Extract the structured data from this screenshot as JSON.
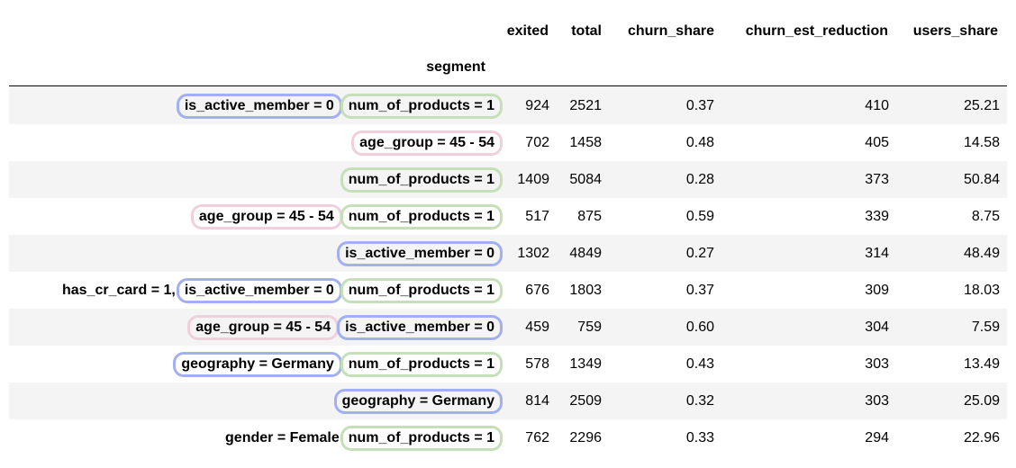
{
  "table": {
    "index_name": "segment",
    "columns": [
      "exited",
      "total",
      "churn_share",
      "churn_est_reduction",
      "users_share"
    ],
    "rows": [
      {
        "segment": [
          {
            "text": "is_active_member = 0",
            "color": "#a2aff0"
          },
          {
            "text": "num_of_products = 1",
            "color": "#c5e0b8"
          }
        ],
        "exited": "924",
        "total": "2521",
        "churn_share": "0.37",
        "churn_est_reduction": "410",
        "users_share": "25.21"
      },
      {
        "segment": [
          {
            "text": "age_group = 45 - 54",
            "color": "#f0d0dc"
          }
        ],
        "exited": "702",
        "total": "1458",
        "churn_share": "0.48",
        "churn_est_reduction": "405",
        "users_share": "14.58"
      },
      {
        "segment": [
          {
            "text": "num_of_products = 1",
            "color": "#c5e0b8"
          }
        ],
        "exited": "1409",
        "total": "5084",
        "churn_share": "0.28",
        "churn_est_reduction": "373",
        "users_share": "50.84"
      },
      {
        "segment": [
          {
            "text": "age_group = 45 - 54",
            "color": "#f0d0dc"
          },
          {
            "text": "num_of_products = 1",
            "color": "#c5e0b8"
          }
        ],
        "exited": "517",
        "total": "875",
        "churn_share": "0.59",
        "churn_est_reduction": "339",
        "users_share": "8.75"
      },
      {
        "segment": [
          {
            "text": "is_active_member = 0",
            "color": "#a2aff0"
          }
        ],
        "exited": "1302",
        "total": "4849",
        "churn_share": "0.27",
        "churn_est_reduction": "314",
        "users_share": "48.49"
      },
      {
        "segment": [
          {
            "text": "has_cr_card = 1,",
            "color": "none"
          },
          {
            "text": "is_active_member = 0",
            "color": "#a2aff0"
          },
          {
            "text": "num_of_products = 1",
            "color": "#c5e0b8"
          }
        ],
        "exited": "676",
        "total": "1803",
        "churn_share": "0.37",
        "churn_est_reduction": "309",
        "users_share": "18.03"
      },
      {
        "segment": [
          {
            "text": "age_group = 45 - 54",
            "color": "#f0d0dc"
          },
          {
            "text": "is_active_member = 0",
            "color": "#a2aff0"
          }
        ],
        "exited": "459",
        "total": "759",
        "churn_share": "0.60",
        "churn_est_reduction": "304",
        "users_share": "7.59"
      },
      {
        "segment": [
          {
            "text": "geography = Germany",
            "color": "#a2aff0"
          },
          {
            "text": "num_of_products = 1",
            "color": "#c5e0b8"
          }
        ],
        "exited": "578",
        "total": "1349",
        "churn_share": "0.43",
        "churn_est_reduction": "303",
        "users_share": "13.49"
      },
      {
        "segment": [
          {
            "text": "geography = Germany",
            "color": "#a2aff0"
          }
        ],
        "exited": "814",
        "total": "2509",
        "churn_share": "0.32",
        "churn_est_reduction": "303",
        "users_share": "25.09"
      },
      {
        "segment": [
          {
            "text": "gender = Female",
            "color": "none"
          },
          {
            "text": "num_of_products = 1",
            "color": "#c5e0b8"
          }
        ],
        "exited": "762",
        "total": "2296",
        "churn_share": "0.33",
        "churn_est_reduction": "294",
        "users_share": "22.96"
      }
    ]
  }
}
